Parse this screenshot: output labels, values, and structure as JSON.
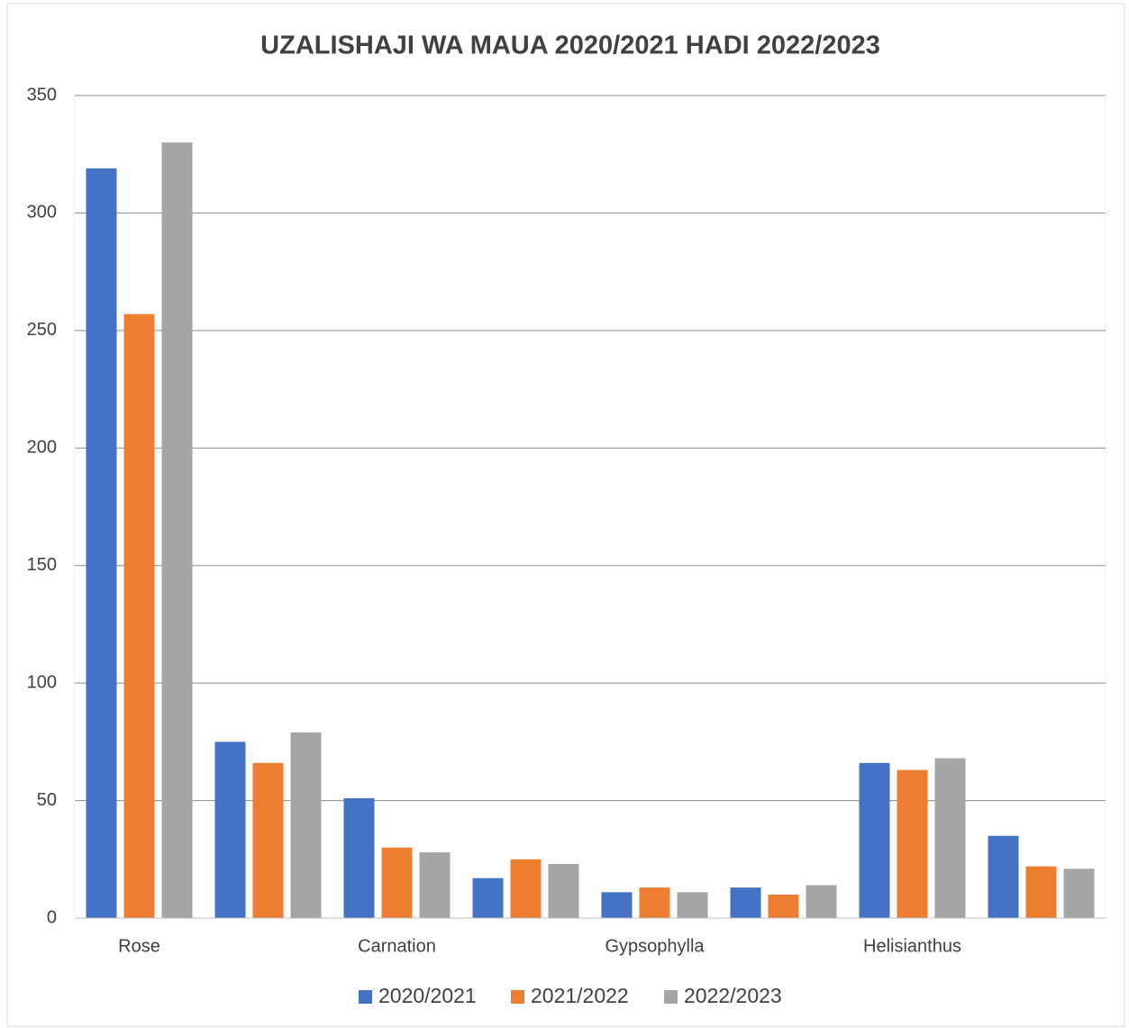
{
  "chart_data": {
    "type": "bar",
    "title": "UZALISHAJI WA MAUA  2020/2021 HADI 2022/2023",
    "categories": [
      "Rose",
      null,
      "Carnation",
      null,
      "Gypsophylla",
      null,
      "Helisianthus",
      null
    ],
    "series": [
      {
        "name": "2020/2021",
        "color": "#4472c4",
        "values": [
          319,
          75,
          51,
          17,
          11,
          13,
          66,
          35
        ]
      },
      {
        "name": "2021/2022",
        "color": "#ed7d31",
        "values": [
          257,
          66,
          30,
          25,
          13,
          10,
          63,
          22
        ]
      },
      {
        "name": "2022/2023",
        "color": "#a5a5a5",
        "values": [
          330,
          79,
          28,
          23,
          11,
          14,
          68,
          21
        ]
      }
    ],
    "ylim": [
      0,
      350
    ],
    "yticks": [
      0,
      50,
      100,
      150,
      200,
      250,
      300,
      350
    ],
    "grid": true,
    "legend": "bottom"
  }
}
